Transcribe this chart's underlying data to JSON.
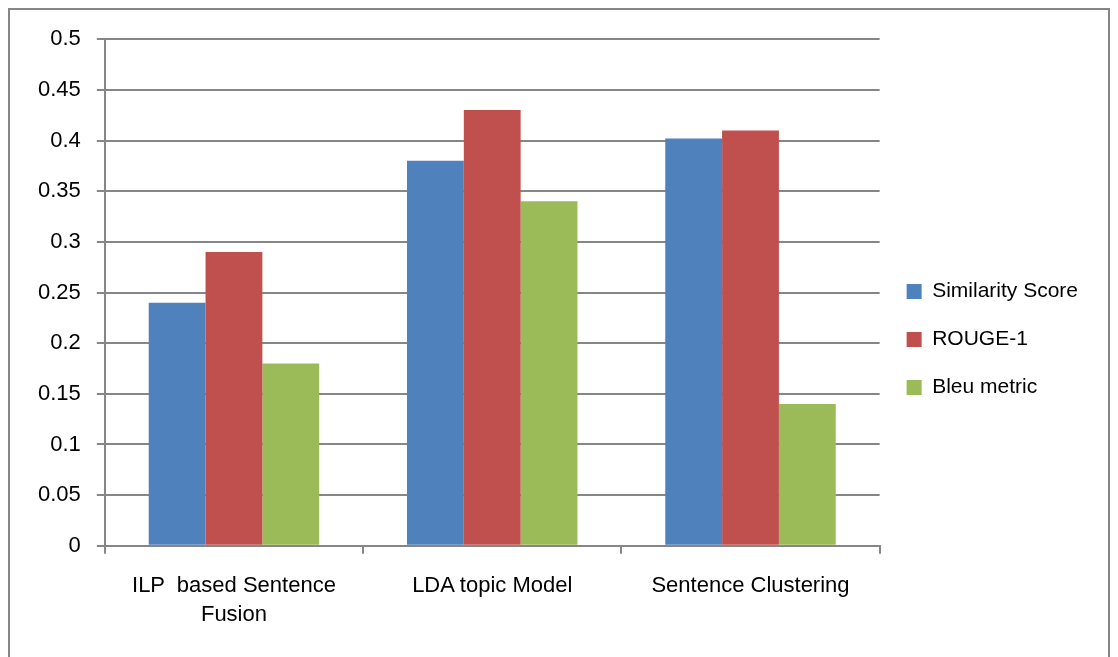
{
  "chart_data": {
    "type": "bar",
    "categories": [
      "ILP  based Sentence Fusion",
      "LDA topic Model",
      "Sentence Clustering"
    ],
    "series": [
      {
        "name": "Similarity Score",
        "color": "#4f81bd",
        "values": [
          0.24,
          0.38,
          0.402
        ]
      },
      {
        "name": "ROUGE-1",
        "color": "#c0504d",
        "values": [
          0.29,
          0.43,
          0.41
        ]
      },
      {
        "name": "Bleu metric",
        "color": "#9bbb59",
        "values": [
          0.18,
          0.34,
          0.14
        ]
      }
    ],
    "ylim": [
      0,
      0.5
    ],
    "yticks": [
      0,
      0.05,
      0.1,
      0.15,
      0.2,
      0.25,
      0.3,
      0.35,
      0.4,
      0.45,
      0.5
    ],
    "grid": "y",
    "legend": "right"
  }
}
